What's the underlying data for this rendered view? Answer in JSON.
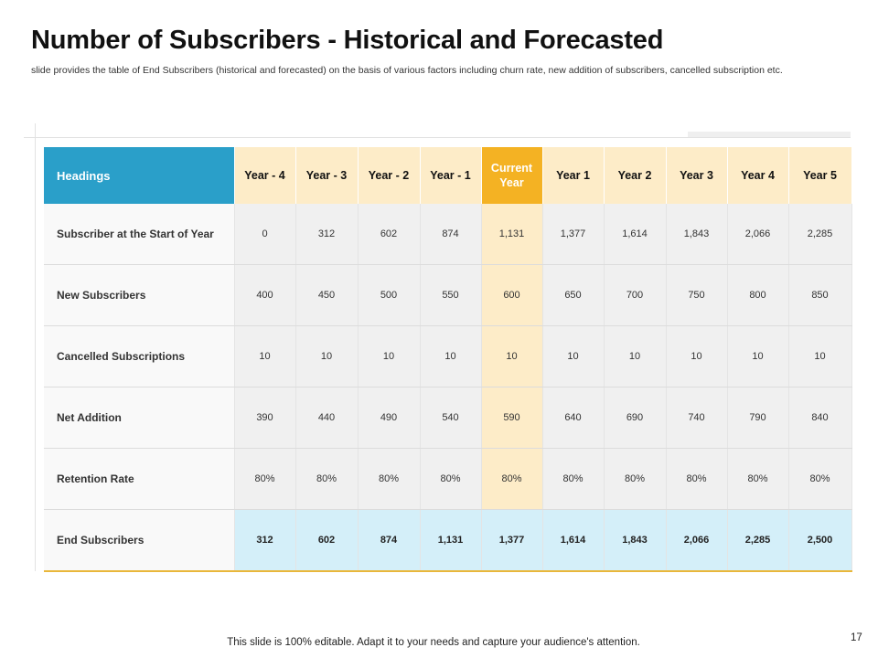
{
  "slide": {
    "title": "Number of Subscribers - Historical and Forecasted",
    "subtitle": "slide provides the table of End Subscribers (historical and forecasted) on the basis of various factors including churn rate, new addition of subscribers, cancelled subscription etc.",
    "footer": "This slide is 100% editable. Adapt it to your needs and capture your audience's attention.",
    "page_number": "17"
  },
  "table": {
    "headings_label": "Headings",
    "columns": [
      "Year - 4",
      "Year - 3",
      "Year - 2",
      "Year - 1",
      "Current Year",
      "Year 1",
      "Year 2",
      "Year 3",
      "Year 4",
      "Year 5"
    ],
    "current_column_index": 4,
    "rows": [
      {
        "label": "Subscriber at the Start of Year",
        "values": [
          "0",
          "312",
          "602",
          "874",
          "1,131",
          "1,377",
          "1,614",
          "1,843",
          "2,066",
          "2,285"
        ]
      },
      {
        "label": "New Subscribers",
        "values": [
          "400",
          "450",
          "500",
          "550",
          "600",
          "650",
          "700",
          "750",
          "800",
          "850"
        ]
      },
      {
        "label": "Cancelled Subscriptions",
        "values": [
          "10",
          "10",
          "10",
          "10",
          "10",
          "10",
          "10",
          "10",
          "10",
          "10"
        ]
      },
      {
        "label": "Net Addition",
        "values": [
          "390",
          "440",
          "490",
          "540",
          "590",
          "640",
          "690",
          "740",
          "790",
          "840"
        ]
      },
      {
        "label": "Retention Rate",
        "values": [
          "80%",
          "80%",
          "80%",
          "80%",
          "80%",
          "80%",
          "80%",
          "80%",
          "80%",
          "80%"
        ]
      },
      {
        "label": "End Subscribers",
        "values": [
          "312",
          "602",
          "874",
          "1,131",
          "1,377",
          "1,614",
          "1,843",
          "2,066",
          "2,285",
          "2,500"
        ]
      }
    ]
  },
  "colors": {
    "headings_bg": "#2a9fc9",
    "current_year_bg": "#f4b223",
    "header_bg": "#fdecc8",
    "end_row_bg": "#d4eff9",
    "accent_line": "#e9b73a"
  }
}
